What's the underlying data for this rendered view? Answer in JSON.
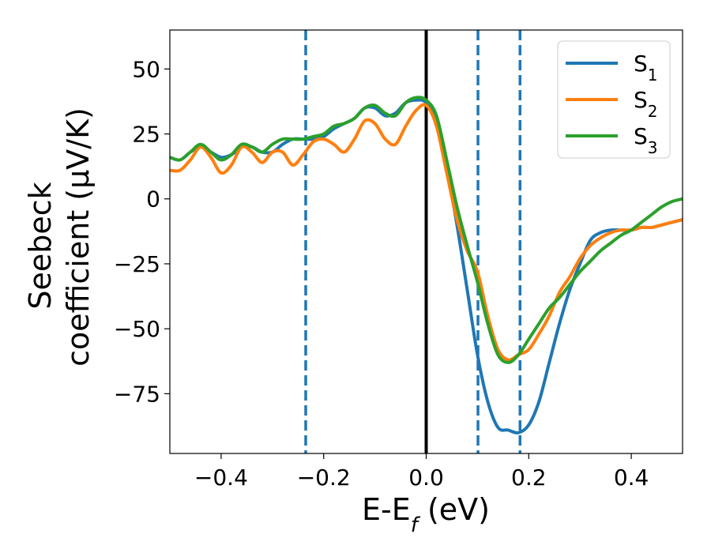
{
  "chart_data": {
    "type": "line",
    "xlabel": "E-E",
    "xlabel_sub": "f",
    "xlabel_unit": " (eV)",
    "ylabel_line1": "Seebeck",
    "ylabel_line2": "coefficient  (μV/K)",
    "xlim": [
      -0.5,
      0.5
    ],
    "ylim": [
      -98,
      65
    ],
    "xticks": [
      -0.4,
      -0.2,
      0.0,
      0.2,
      0.4
    ],
    "xtick_labels": [
      "−0.4",
      "−0.2",
      "0.0",
      "0.2",
      "0.4"
    ],
    "yticks": [
      50,
      25,
      0,
      -25,
      -50,
      -75
    ],
    "ytick_labels": [
      "50",
      "25",
      "0",
      "−25",
      "−50",
      "−75"
    ],
    "grid": false,
    "legend_position": "top-right",
    "vlines": [
      {
        "x": 0.0,
        "style": "solid",
        "color": "#000000"
      },
      {
        "x": -0.235,
        "style": "dashed",
        "color": "#1f77b4"
      },
      {
        "x": 0.101,
        "style": "dashed",
        "color": "#1f77b4"
      },
      {
        "x": 0.183,
        "style": "dashed",
        "color": "#1f77b4"
      }
    ],
    "series": [
      {
        "name": "S",
        "sub": "1",
        "color": "#1f77b4",
        "x": [
          -0.5,
          -0.48,
          -0.46,
          -0.44,
          -0.42,
          -0.4,
          -0.38,
          -0.36,
          -0.34,
          -0.32,
          -0.3,
          -0.28,
          -0.26,
          -0.24,
          -0.22,
          -0.2,
          -0.18,
          -0.16,
          -0.14,
          -0.12,
          -0.1,
          -0.08,
          -0.06,
          -0.04,
          -0.02,
          0.0,
          0.02,
          0.04,
          0.06,
          0.08,
          0.1,
          0.12,
          0.14,
          0.16,
          0.18,
          0.2,
          0.22,
          0.24,
          0.26,
          0.28,
          0.3,
          0.32,
          0.34,
          0.36,
          0.38,
          0.4,
          0.42,
          0.44,
          0.46,
          0.48,
          0.5
        ],
        "y": [
          16,
          15,
          18,
          20,
          18,
          16,
          17,
          20,
          20,
          18,
          18,
          21,
          23,
          23,
          23,
          24,
          27,
          29,
          31,
          35,
          35,
          32,
          33,
          37,
          38,
          37,
          29,
          12,
          -10,
          -35,
          -60,
          -78,
          -88,
          -89,
          -90,
          -87,
          -78,
          -63,
          -48,
          -35,
          -25,
          -16,
          -13,
          -12,
          -12,
          -12,
          -11,
          -11,
          -10,
          -9,
          -8
        ]
      },
      {
        "name": "S",
        "sub": "2",
        "color": "#ff7f0e",
        "x": [
          -0.5,
          -0.48,
          -0.46,
          -0.44,
          -0.42,
          -0.4,
          -0.38,
          -0.36,
          -0.34,
          -0.32,
          -0.3,
          -0.28,
          -0.26,
          -0.24,
          -0.22,
          -0.2,
          -0.18,
          -0.16,
          -0.14,
          -0.12,
          -0.1,
          -0.08,
          -0.06,
          -0.04,
          -0.02,
          0.0,
          0.02,
          0.04,
          0.06,
          0.08,
          0.1,
          0.12,
          0.14,
          0.16,
          0.18,
          0.2,
          0.22,
          0.24,
          0.26,
          0.28,
          0.3,
          0.32,
          0.34,
          0.36,
          0.38,
          0.4,
          0.42,
          0.44,
          0.46,
          0.48,
          0.5
        ],
        "y": [
          11,
          11,
          15,
          20,
          16,
          10,
          13,
          20,
          18,
          14,
          18,
          18,
          13,
          17,
          22,
          23,
          21,
          18,
          23,
          30,
          29,
          23,
          21,
          28,
          34,
          36,
          28,
          10,
          -8,
          -20,
          -28,
          -45,
          -58,
          -62,
          -60,
          -58,
          -52,
          -45,
          -36,
          -30,
          -23,
          -18,
          -15,
          -13,
          -12,
          -12,
          -11,
          -11,
          -10,
          -9,
          -8
        ]
      },
      {
        "name": "S",
        "sub": "3",
        "color": "#2ca02c",
        "x": [
          -0.5,
          -0.48,
          -0.46,
          -0.44,
          -0.42,
          -0.4,
          -0.38,
          -0.36,
          -0.34,
          -0.32,
          -0.3,
          -0.28,
          -0.26,
          -0.24,
          -0.22,
          -0.2,
          -0.18,
          -0.16,
          -0.14,
          -0.12,
          -0.1,
          -0.08,
          -0.06,
          -0.04,
          -0.02,
          0.0,
          0.02,
          0.04,
          0.06,
          0.08,
          0.1,
          0.12,
          0.14,
          0.16,
          0.18,
          0.2,
          0.22,
          0.24,
          0.26,
          0.28,
          0.3,
          0.32,
          0.34,
          0.36,
          0.38,
          0.4,
          0.42,
          0.44,
          0.46,
          0.48,
          0.5
        ],
        "y": [
          16,
          15,
          18,
          21,
          18,
          15,
          17,
          21,
          20,
          18,
          21,
          23,
          23,
          23,
          24,
          25,
          28,
          29,
          31,
          35,
          36,
          33,
          32,
          37,
          39,
          38,
          32,
          15,
          -3,
          -18,
          -32,
          -48,
          -60,
          -63,
          -60,
          -54,
          -48,
          -42,
          -38,
          -33,
          -28,
          -24,
          -20,
          -17,
          -14,
          -12,
          -9,
          -6,
          -3,
          -1,
          0
        ]
      }
    ]
  }
}
